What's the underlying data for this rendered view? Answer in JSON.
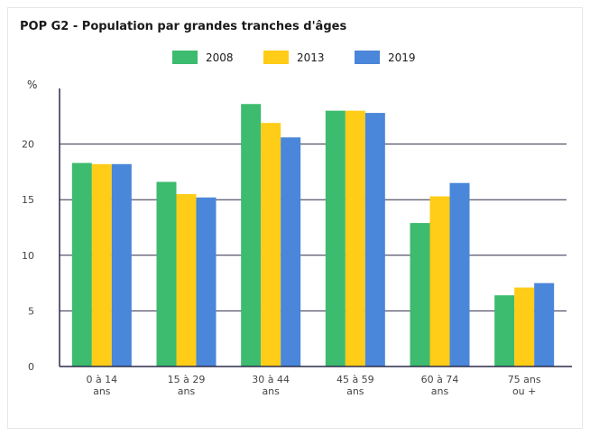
{
  "chart_data": {
    "type": "bar",
    "title": "POP G2 - Population par grandes tranches d'âges",
    "ylabel": "%",
    "xlabel": "",
    "ylim": [
      0,
      25
    ],
    "yticks": [
      0,
      5,
      10,
      15,
      20
    ],
    "grid": true,
    "legend_position": "top",
    "categories": [
      [
        "0 à 14",
        "ans"
      ],
      [
        "15 à 29",
        "ans"
      ],
      [
        "30 à 44",
        "ans"
      ],
      [
        "45 à 59",
        "ans"
      ],
      [
        "60 à 74",
        "ans"
      ],
      [
        "75 ans",
        "ou +"
      ]
    ],
    "series": [
      {
        "name": "2008",
        "color": "#3dbb6e",
        "values": [
          18.3,
          16.6,
          23.6,
          23.0,
          12.9,
          6.4
        ]
      },
      {
        "name": "2013",
        "color": "#ffcc17",
        "values": [
          18.2,
          15.5,
          21.9,
          23.0,
          15.3,
          7.1
        ]
      },
      {
        "name": "2019",
        "color": "#4a86d9",
        "values": [
          18.2,
          15.2,
          20.6,
          22.8,
          16.5,
          7.5
        ]
      }
    ]
  }
}
